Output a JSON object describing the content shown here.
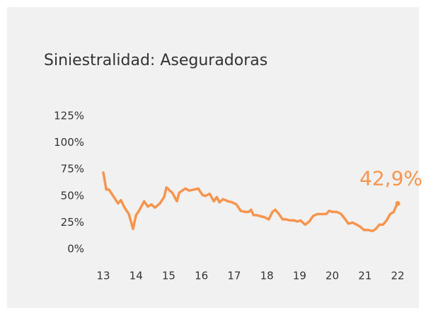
{
  "chart_data": {
    "type": "line",
    "title": "Siniestralidad: Aseguradoras",
    "color": "#f7954f",
    "x": [
      13.0,
      13.09,
      13.17,
      13.3,
      13.45,
      13.54,
      13.65,
      13.78,
      13.91,
      14.0,
      14.09,
      14.25,
      14.36,
      14.47,
      14.58,
      14.73,
      14.86,
      14.93,
      15.03,
      15.11,
      15.25,
      15.32,
      15.41,
      15.51,
      15.62,
      15.77,
      15.9,
      16.03,
      16.12,
      16.25,
      16.38,
      16.47,
      16.55,
      16.66,
      16.81,
      16.94,
      17.07,
      17.2,
      17.33,
      17.44,
      17.52,
      17.59,
      17.68,
      17.8,
      17.93,
      18.06,
      18.17,
      18.26,
      18.37,
      18.48,
      18.59,
      18.71,
      18.84,
      18.92,
      19.03,
      19.17,
      19.3,
      19.41,
      19.54,
      19.69,
      19.82,
      19.9,
      20.01,
      20.14,
      20.27,
      20.4,
      20.49,
      20.62,
      20.75,
      20.86,
      20.97,
      21.1,
      21.23,
      21.33,
      21.44,
      21.55,
      21.66,
      21.77,
      21.88,
      21.93,
      22.0
    ],
    "values": [
      72,
      56,
      56,
      50,
      43,
      46,
      39,
      33,
      19,
      32,
      36,
      45,
      40,
      42,
      39,
      43,
      49,
      58,
      55,
      53,
      45,
      53,
      55,
      57,
      55,
      56,
      57,
      51,
      50,
      52,
      45,
      49,
      44,
      47,
      45,
      44,
      42,
      36,
      35,
      35,
      37,
      32,
      32,
      31,
      30,
      28,
      35,
      37,
      33,
      28,
      28,
      27,
      27,
      26,
      27,
      23,
      26,
      31,
      33,
      33,
      33,
      36,
      35,
      35,
      33,
      28,
      24,
      25,
      23,
      21,
      18,
      18,
      17,
      19,
      23,
      23,
      27,
      33,
      35,
      39,
      42.9
    ],
    "value_labels": [
      null,
      null,
      null,
      null,
      null,
      null,
      null,
      null,
      null,
      null,
      null,
      null,
      null,
      null,
      null,
      null,
      null,
      null,
      null,
      null,
      null,
      null,
      null,
      null,
      null,
      null,
      null,
      null,
      null,
      null,
      null,
      null,
      null,
      null,
      null,
      null,
      null,
      null,
      null,
      null,
      null,
      null,
      null,
      null,
      null,
      null,
      null,
      null,
      null,
      null,
      null,
      null,
      null,
      null,
      null,
      null,
      null,
      null,
      null,
      null,
      null,
      null,
      null,
      null,
      null,
      null,
      null,
      null,
      null,
      null,
      null,
      null,
      null,
      null,
      null,
      null,
      null,
      null,
      null,
      null,
      "42,9%"
    ],
    "xlim": [
      13,
      22
    ],
    "xticks": [
      13,
      14,
      15,
      16,
      17,
      18,
      19,
      20,
      21,
      22
    ],
    "ylim": [
      0,
      125
    ],
    "yticks": [
      {
        "value": 0,
        "label": "0%"
      },
      {
        "value": 25,
        "label": "25%"
      },
      {
        "value": 50,
        "label": "50%"
      },
      {
        "value": 75,
        "label": "75%"
      },
      {
        "value": 100,
        "label": "100%"
      },
      {
        "value": 125,
        "label": "125%"
      }
    ],
    "grid": false
  }
}
